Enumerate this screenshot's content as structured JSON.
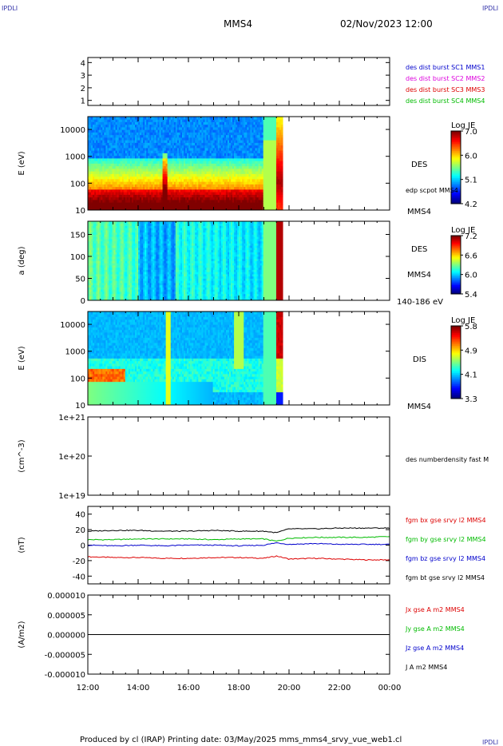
{
  "corner_left": "IPDLI",
  "corner_right": "IPDLI",
  "corner_bottom_right": "IPDLI",
  "spacecraft": "MMS4",
  "datetime": "02/Nov/2023 12:00",
  "footer": "Produced by cl (IRAP)   Printing date: 03/May/2025   mms_mms4_srvy_vue_web1.cl",
  "colors": {
    "red": "#dd0000",
    "green": "#00bb00",
    "blue": "#0000cc",
    "magenta": "#dd00dd",
    "black": "#000000",
    "corner": "#3333aa"
  },
  "chart_data": [
    {
      "type": "line",
      "panel": "burst",
      "yticks": [
        "1",
        "2",
        "3",
        "4"
      ],
      "ylim": [
        0.6,
        4.4
      ],
      "legend": [
        {
          "name": "des dist burst SC1 MMS1",
          "color": "#0000cc"
        },
        {
          "name": "des dist burst SC2 MMS2",
          "color": "#dd00dd"
        },
        {
          "name": "des dist burst SC3 MMS3",
          "color": "#dd0000"
        },
        {
          "name": "des dist burst SC4 MMS4",
          "color": "#00bb00"
        }
      ]
    },
    {
      "type": "heatmap",
      "panel": "des_energy",
      "ylabel": "E (eV)",
      "yscale": "log",
      "ylim": [
        10,
        30000
      ],
      "yticks": [
        "10",
        "100",
        "1000",
        "10000"
      ],
      "instrument": "DES",
      "overlay": "edp scpot MMS4",
      "spacecraft": "MMS4",
      "colorbar": {
        "title": "Log JE",
        "ticks": [
          "7.0",
          "6.0",
          "5.1",
          "4.2"
        ]
      },
      "data_end_hour": 19.75
    },
    {
      "type": "heatmap",
      "panel": "des_pitch",
      "ylabel": "a (deg)",
      "ylim": [
        0,
        180
      ],
      "yticks": [
        "0",
        "50",
        "100",
        "150"
      ],
      "instrument": "DES",
      "spacecraft": "MMS4",
      "energy_range": "140-186 eV",
      "colorbar": {
        "title": "Log JE",
        "ticks": [
          "7.2",
          "6.6",
          "6.0",
          "5.4"
        ]
      },
      "data_end_hour": 19.75
    },
    {
      "type": "heatmap",
      "panel": "dis_energy",
      "ylabel": "E (eV)",
      "yscale": "log",
      "ylim": [
        10,
        30000
      ],
      "yticks": [
        "10",
        "100",
        "1000",
        "10000"
      ],
      "instrument": "DIS",
      "spacecraft": "MMS4",
      "colorbar": {
        "title": "Log JE",
        "ticks": [
          "5.8",
          "4.9",
          "4.1",
          "3.3"
        ]
      },
      "data_end_hour": 19.75
    },
    {
      "type": "line",
      "panel": "density",
      "ylabel": "(cm^-3)",
      "yscale": "log",
      "yticks": [
        "1e+19",
        "1e+20",
        "1e+21"
      ],
      "legend": [
        {
          "name": "des numberdensity fast M",
          "color": "#000000"
        }
      ],
      "series": []
    },
    {
      "type": "line",
      "panel": "bfield",
      "ylabel": "(nT)",
      "ylim": [
        -50,
        50
      ],
      "yticks": [
        "-40",
        "-20",
        "0",
        "20",
        "40"
      ],
      "x": [
        12,
        13,
        14,
        15,
        16,
        17,
        18,
        19,
        19.5,
        20,
        21,
        22,
        23,
        24
      ],
      "series": [
        {
          "name": "fgm bx gse srvy l2 MMS4",
          "color": "#dd0000",
          "values": [
            -15,
            -16,
            -16,
            -17,
            -17,
            -16,
            -16,
            -17,
            -14,
            -18,
            -17,
            -18,
            -19,
            -19
          ]
        },
        {
          "name": "fgm by gse srvy l2 MMS4",
          "color": "#00bb00",
          "values": [
            7,
            7,
            8,
            8,
            8,
            7,
            8,
            8,
            5,
            9,
            10,
            10,
            10,
            11
          ]
        },
        {
          "name": "fgm bz gse srvy l2 MMS4",
          "color": "#0000cc",
          "values": [
            0,
            -1,
            0,
            -1,
            0,
            0,
            -1,
            0,
            3,
            1,
            2,
            1,
            1,
            1
          ]
        },
        {
          "name": "fgm bt gse srvy l2 MMS4",
          "color": "#000000",
          "values": [
            18,
            19,
            19,
            18,
            18,
            19,
            18,
            18,
            16,
            21,
            21,
            22,
            22,
            22
          ]
        }
      ]
    },
    {
      "type": "line",
      "panel": "current",
      "ylabel": "(A/m2)",
      "ylim": [
        -1e-05,
        1e-05
      ],
      "yticks": [
        "-0.000010",
        "-0.000005",
        "0.000000",
        "0.000005",
        "0.000010"
      ],
      "x": [
        12,
        24
      ],
      "series": [
        {
          "name": "Jx gse A m2 MMS4",
          "color": "#dd0000",
          "values": [
            0,
            0
          ]
        },
        {
          "name": "Jy gse A m2 MMS4",
          "color": "#00bb00",
          "values": [
            0,
            0
          ]
        },
        {
          "name": "Jz gse A m2 MMS4",
          "color": "#0000cc",
          "values": [
            0,
            0
          ]
        },
        {
          "name": "J A m2 MMS4",
          "color": "#000000",
          "values": [
            0,
            0
          ]
        }
      ]
    }
  ],
  "xaxis": {
    "ticks": [
      "12:00",
      "14:00",
      "16:00",
      "18:00",
      "20:00",
      "22:00",
      "00:00"
    ],
    "xlim": [
      12,
      24
    ]
  }
}
